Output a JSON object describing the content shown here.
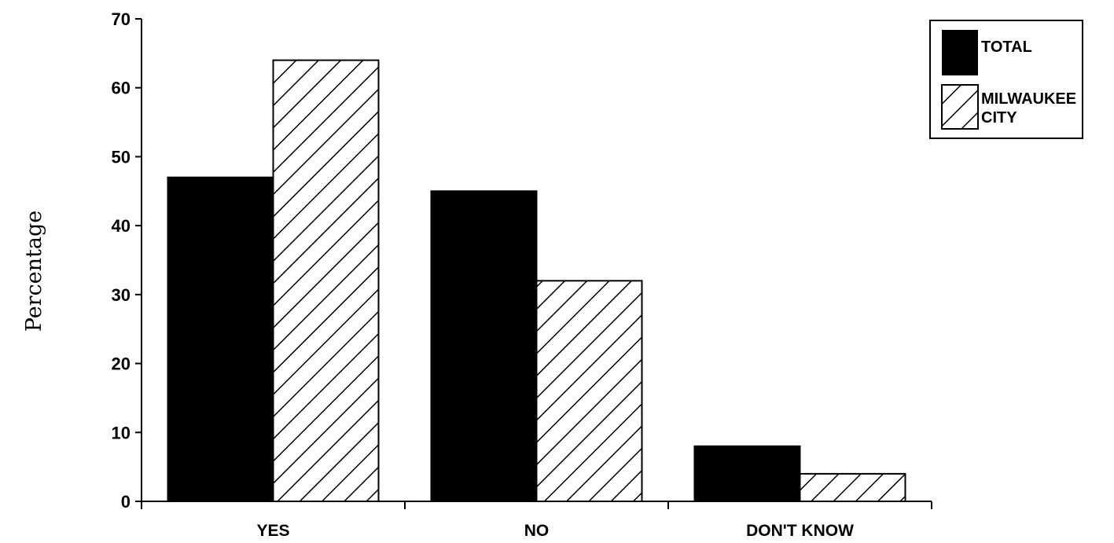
{
  "chart_data": {
    "type": "bar",
    "title": "",
    "xlabel": "",
    "ylabel": "Percentage",
    "ylim": [
      0,
      70
    ],
    "yticks": [
      "0",
      "10",
      "20",
      "30",
      "40",
      "50",
      "60",
      "70"
    ],
    "categories": [
      "YES",
      "NO",
      "DON'T KNOW"
    ],
    "series": [
      {
        "name": "TOTAL",
        "values": [
          47,
          45,
          8
        ],
        "fill": "solid",
        "color": "#000000"
      },
      {
        "name": "MILWAUKEE CITY",
        "values": [
          64,
          32,
          4
        ],
        "fill": "hatch",
        "color": "#000000"
      }
    ],
    "legend_placement": "top-right",
    "grid": false
  }
}
